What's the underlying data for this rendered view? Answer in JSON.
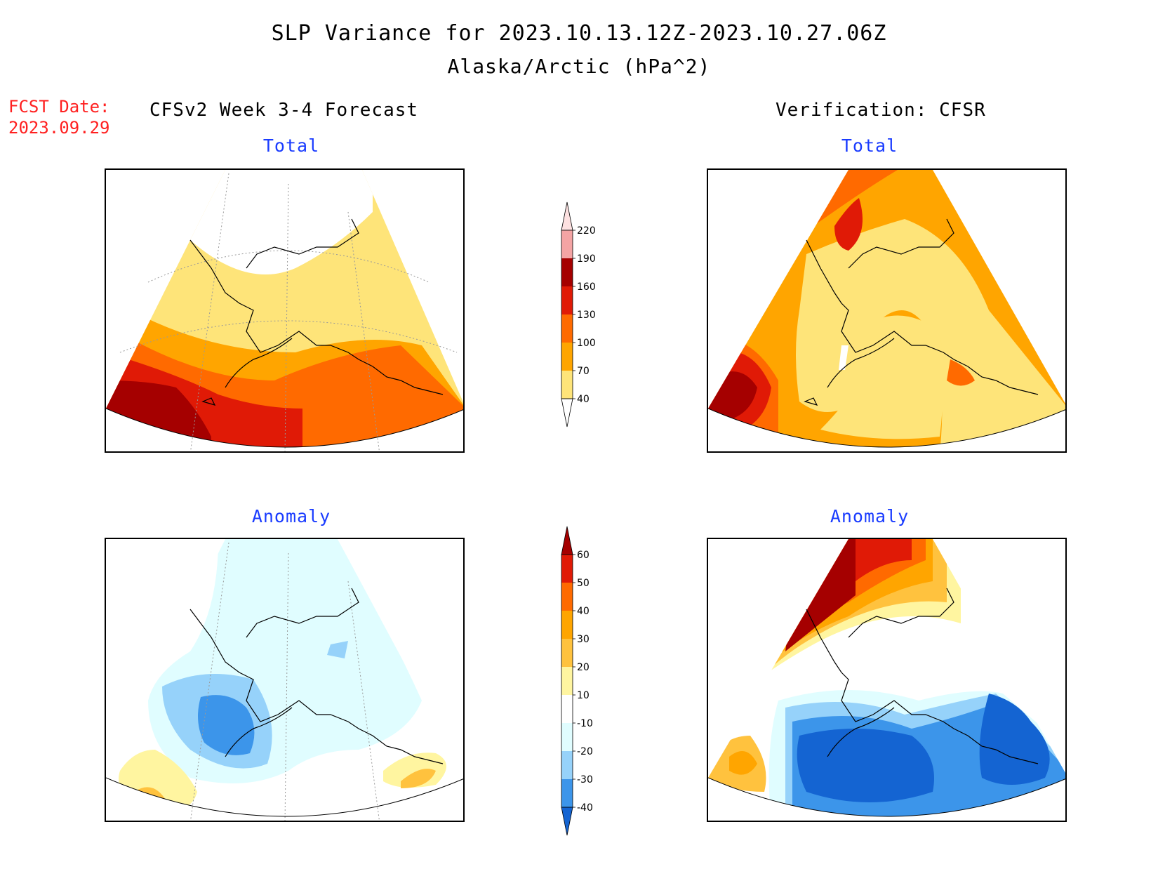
{
  "title": {
    "line1": "SLP Variance for 2023.10.13.12Z-2023.10.27.06Z",
    "line2": "Alaska/Arctic (hPa^2)"
  },
  "fcst": {
    "label": "FCST Date:",
    "date": "2023.09.29",
    "color": "#ff2020"
  },
  "columns": {
    "left": "CFSv2 Week 3-4 Forecast",
    "right": "Verification: CFSR"
  },
  "panels": {
    "total_title": "Total",
    "anomaly_title": "Anomaly",
    "title_color": "#1a3cff"
  },
  "colorbars": {
    "total": {
      "labels": [
        "220",
        "190",
        "160",
        "130",
        "100",
        "70",
        "40"
      ],
      "colors": [
        "#fde1e1",
        "#f4a4a4",
        "#a50000",
        "#e01a06",
        "#ff6a00",
        "#ffa500",
        "#fee479"
      ]
    },
    "anomaly": {
      "labels": [
        "60",
        "50",
        "40",
        "30",
        "20",
        "10",
        "-10",
        "-20",
        "-30",
        "-40"
      ],
      "colors": [
        "#a50000",
        "#e01a06",
        "#ff6a00",
        "#ffa500",
        "#ffc23e",
        "#fff5a0",
        "#ffffff",
        "#e0fdff",
        "#96d2fa",
        "#3c95ea",
        "#1464d2"
      ]
    }
  }
}
